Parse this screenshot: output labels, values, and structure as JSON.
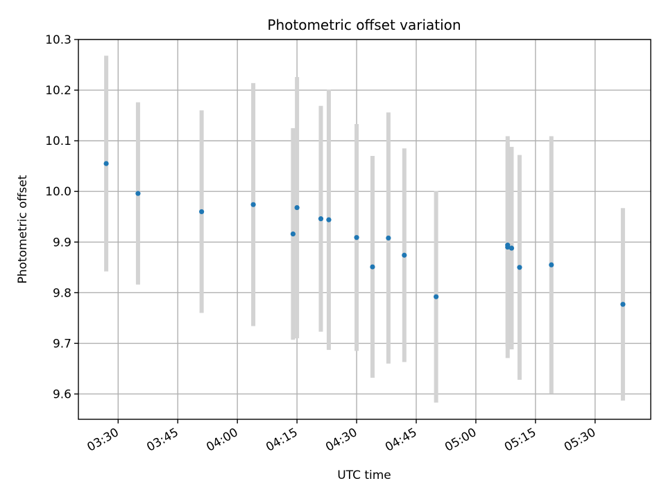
{
  "chart_data": {
    "type": "scatter",
    "title": "Photometric offset variation",
    "xlabel": "UTC time",
    "ylabel": "Photometric offset",
    "x_ticks": [
      "03:30",
      "03:45",
      "04:00",
      "04:15",
      "04:30",
      "04:45",
      "05:00",
      "05:15",
      "05:30"
    ],
    "y_ticks": [
      "9.6",
      "9.7",
      "9.8",
      "9.9",
      "10.0",
      "10.1",
      "10.2",
      "10.3"
    ],
    "xlim": [
      "03:20",
      "05:44"
    ],
    "ylim": [
      9.55,
      10.3
    ],
    "grid": true,
    "colors": {
      "points": "#1f77b4",
      "errorbars": "#d3d3d3"
    },
    "points": [
      {
        "x": "03:27",
        "y": 10.055,
        "err": 0.213
      },
      {
        "x": "03:35",
        "y": 9.996,
        "err": 0.18
      },
      {
        "x": "03:51",
        "y": 9.96,
        "err": 0.2
      },
      {
        "x": "04:04",
        "y": 9.974,
        "err": 0.24
      },
      {
        "x": "04:14",
        "y": 9.916,
        "err": 0.209
      },
      {
        "x": "04:15",
        "y": 9.968,
        "err": 0.258
      },
      {
        "x": "04:21",
        "y": 9.946,
        "err": 0.223
      },
      {
        "x": "04:23",
        "y": 9.944,
        "err": 0.257
      },
      {
        "x": "04:30",
        "y": 9.909,
        "err": 0.224
      },
      {
        "x": "04:34",
        "y": 9.851,
        "err": 0.219
      },
      {
        "x": "04:38",
        "y": 9.908,
        "err": 0.248
      },
      {
        "x": "04:42",
        "y": 9.874,
        "err": 0.211
      },
      {
        "x": "04:50",
        "y": 9.792,
        "err": 0.209
      },
      {
        "x": "05:08",
        "y": 9.89,
        "err": 0.219
      },
      {
        "x": "05:08",
        "y": 9.894,
        "err": 0.2
      },
      {
        "x": "05:09",
        "y": 9.888,
        "err": 0.2
      },
      {
        "x": "05:11",
        "y": 9.85,
        "err": 0.222
      },
      {
        "x": "05:19",
        "y": 9.855,
        "err": 0.254
      },
      {
        "x": "05:37",
        "y": 9.777,
        "err": 0.19
      }
    ]
  }
}
